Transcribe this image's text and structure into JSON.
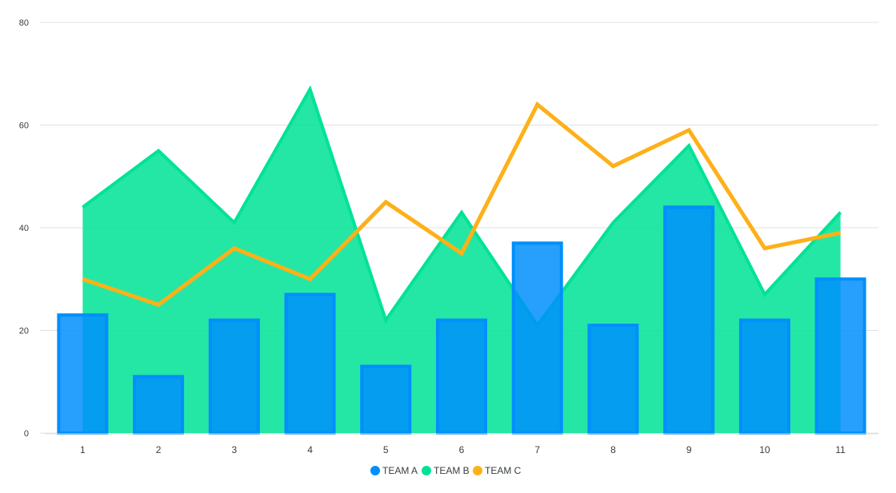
{
  "chart_data": {
    "type": "bar",
    "categories": [
      "1",
      "2",
      "3",
      "4",
      "5",
      "6",
      "7",
      "8",
      "9",
      "10",
      "11"
    ],
    "series": [
      {
        "name": "TEAM A",
        "kind": "bar",
        "color": "#008ffb",
        "values": [
          23,
          11,
          22,
          27,
          13,
          22,
          37,
          21,
          44,
          22,
          30
        ]
      },
      {
        "name": "TEAM B",
        "kind": "area",
        "color": "#00e396",
        "values": [
          44,
          55,
          41,
          67,
          22,
          43,
          21,
          41,
          56,
          27,
          43
        ]
      },
      {
        "name": "TEAM C",
        "kind": "line",
        "color": "#feb019",
        "values": [
          30,
          25,
          36,
          30,
          45,
          35,
          64,
          52,
          59,
          36,
          39
        ]
      }
    ],
    "yaxis": {
      "ticks": [
        "0",
        "20",
        "40",
        "60",
        "80"
      ],
      "ylim": [
        0,
        80
      ]
    },
    "grid": true,
    "legend_position": "bottom"
  }
}
